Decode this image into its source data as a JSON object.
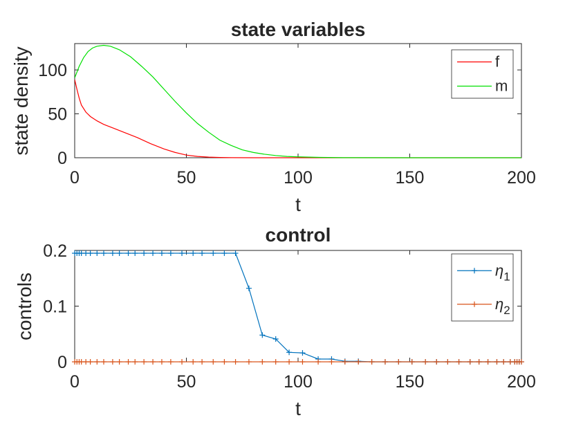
{
  "chart_data": [
    {
      "type": "line",
      "title": "state variables",
      "xlabel": "t",
      "ylabel": "state density",
      "xlim": [
        0,
        200
      ],
      "ylim": [
        0,
        130
      ],
      "xticks": [
        0,
        50,
        100,
        150,
        200
      ],
      "yticks": [
        0,
        50,
        100
      ],
      "legend_position": "top-right",
      "grid": false,
      "series": [
        {
          "name": "f",
          "color": "#ff0000",
          "x": [
            0,
            1,
            2,
            3,
            5,
            7,
            10,
            13,
            17,
            22,
            28,
            34,
            40,
            45,
            50,
            55,
            60,
            65,
            70,
            80,
            100,
            150,
            200
          ],
          "y": [
            89,
            78,
            68,
            60,
            52,
            47,
            42,
            38,
            34,
            29,
            23,
            16,
            10,
            6,
            3,
            1.5,
            0.7,
            0.3,
            0.1,
            0,
            0,
            0,
            0
          ]
        },
        {
          "name": "m",
          "color": "#00e000",
          "x": [
            0,
            2,
            4,
            6,
            8,
            10,
            13,
            16,
            20,
            25,
            30,
            35,
            40,
            45,
            50,
            55,
            60,
            65,
            70,
            75,
            80,
            85,
            90,
            95,
            100,
            110,
            120,
            150,
            200
          ],
          "y": [
            91,
            104,
            114,
            121,
            125,
            127,
            128,
            127,
            123,
            115,
            104,
            92,
            78,
            64,
            51,
            39,
            29,
            20,
            14,
            9,
            6,
            4,
            2.5,
            1.5,
            1,
            0.4,
            0.1,
            0,
            0
          ]
        }
      ]
    },
    {
      "type": "line",
      "title": "control",
      "xlabel": "t",
      "ylabel": "controls",
      "xlim": [
        0,
        200
      ],
      "ylim": [
        0,
        0.2
      ],
      "xticks": [
        0,
        50,
        100,
        150,
        200
      ],
      "yticks": [
        0,
        0.1,
        0.2
      ],
      "legend_position": "top-right",
      "grid": false,
      "series": [
        {
          "name": "η1",
          "color": "#0072bd",
          "marker": "+",
          "x": [
            0,
            1,
            2,
            3,
            5,
            7,
            10,
            13,
            17,
            20,
            24,
            27,
            31,
            35,
            39,
            43,
            48,
            53,
            57,
            62,
            67,
            72,
            78,
            84,
            90,
            96,
            102,
            109,
            115,
            121,
            127,
            133,
            139,
            145,
            151,
            157,
            162,
            167,
            172,
            177,
            181,
            185,
            189,
            192,
            195,
            197,
            198,
            199,
            200
          ],
          "y": [
            0.195,
            0.195,
            0.195,
            0.195,
            0.195,
            0.195,
            0.195,
            0.195,
            0.195,
            0.195,
            0.195,
            0.195,
            0.195,
            0.195,
            0.195,
            0.195,
            0.195,
            0.195,
            0.195,
            0.195,
            0.195,
            0.195,
            0.132,
            0.048,
            0.041,
            0.017,
            0.016,
            0.005,
            0.005,
            0.001,
            0.001,
            0,
            0,
            0,
            0,
            0,
            0,
            0,
            0,
            0,
            0,
            0,
            0,
            0,
            0,
            0,
            0,
            0,
            0
          ]
        },
        {
          "name": "η2",
          "color": "#d95319",
          "marker": "+",
          "x": [
            0,
            1,
            2,
            3,
            5,
            7,
            10,
            13,
            17,
            20,
            24,
            27,
            31,
            35,
            39,
            43,
            48,
            53,
            57,
            62,
            67,
            72,
            78,
            84,
            90,
            96,
            102,
            109,
            115,
            121,
            127,
            133,
            139,
            145,
            151,
            157,
            162,
            167,
            172,
            177,
            181,
            185,
            189,
            192,
            195,
            197,
            198,
            199,
            200
          ],
          "y": [
            0,
            0,
            0,
            0,
            0,
            0,
            0,
            0,
            0,
            0,
            0,
            0,
            0,
            0,
            0,
            0,
            0,
            0,
            0,
            0,
            0,
            0,
            0,
            0,
            0,
            0,
            0,
            0,
            0,
            0,
            0,
            0,
            0,
            0,
            0,
            0,
            0,
            0,
            0,
            0,
            0,
            0,
            0,
            0,
            0,
            0,
            0,
            0,
            0
          ]
        }
      ]
    }
  ]
}
